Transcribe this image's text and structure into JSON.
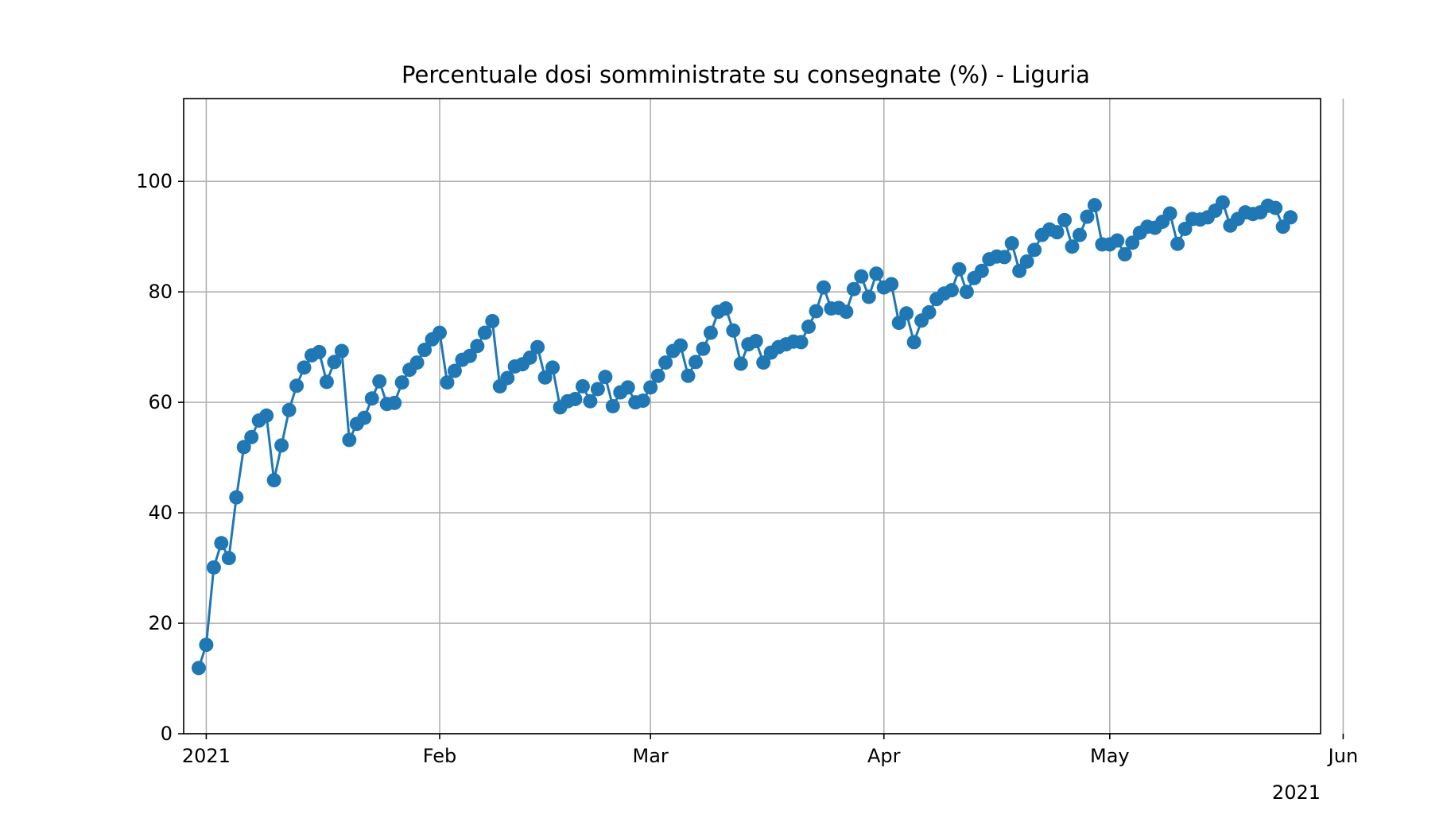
{
  "chart_data": {
    "type": "line",
    "title": "Percentuale dosi somministrate su consegnate (%) - Liguria",
    "xlabel": "",
    "ylabel": "",
    "x_start": "2020-12-31",
    "xlim": [
      "2020-12-29",
      "2021-05-29"
    ],
    "ylim": [
      0,
      115
    ],
    "yticks": [
      0,
      20,
      40,
      60,
      80,
      100
    ],
    "xticks": [
      {
        "date": "2021-01-01",
        "label": "2021"
      },
      {
        "date": "2021-02-01",
        "label": "Feb"
      },
      {
        "date": "2021-03-01",
        "label": "Mar"
      },
      {
        "date": "2021-04-01",
        "label": "Apr"
      },
      {
        "date": "2021-05-01",
        "label": "May"
      },
      {
        "date": "2021-06-01",
        "label": "Jun"
      }
    ],
    "x_offset_label": "2021",
    "grid": true,
    "line_color": "#1f77b4",
    "marker": "circle",
    "series": [
      {
        "values": [
          11.9,
          16.1,
          30.1,
          34.5,
          31.8,
          42.8,
          51.9,
          53.7,
          56.7,
          57.6,
          45.9,
          52.2,
          58.6,
          63.0,
          66.3,
          68.5,
          69.1,
          63.7,
          67.3,
          69.3,
          53.2,
          56.1,
          57.2,
          60.7,
          63.8,
          59.7,
          59.9,
          63.6,
          65.9,
          67.2,
          69.5,
          71.4,
          72.6,
          63.6,
          65.7,
          67.7,
          68.4,
          70.2,
          72.6,
          74.7,
          62.9,
          64.4,
          66.5,
          66.9,
          68.1,
          70.0,
          64.5,
          66.3,
          59.1,
          60.2,
          60.6,
          62.9,
          60.2,
          62.4,
          64.6,
          59.3,
          61.8,
          62.7,
          60.0,
          60.3,
          62.7,
          64.8,
          67.2,
          69.3,
          70.3,
          64.8,
          67.3,
          69.7,
          72.6,
          76.4,
          77.0,
          73.0,
          67.0,
          70.5,
          71.1,
          67.2,
          69.0,
          70.0,
          70.5,
          71.0,
          70.9,
          73.7,
          76.5,
          80.8,
          77.0,
          77.1,
          76.4,
          80.5,
          82.8,
          79.1,
          83.3,
          80.8,
          81.4,
          74.4,
          76.1,
          70.9,
          74.8,
          76.3,
          78.7,
          79.7,
          80.3,
          84.1,
          80.0,
          82.5,
          83.8,
          85.9,
          86.4,
          86.3,
          88.8,
          83.8,
          85.5,
          87.6,
          90.3,
          91.3,
          90.8,
          93.0,
          88.2,
          90.3,
          93.6,
          95.7,
          88.6,
          88.6,
          89.3,
          86.8,
          88.9,
          90.7,
          91.8,
          91.6,
          92.7,
          94.2,
          88.7,
          91.4,
          93.2,
          93.1,
          93.5,
          94.7,
          96.2,
          92.0,
          93.2,
          94.4,
          94.1,
          94.4,
          95.6,
          95.2,
          91.8,
          93.5
        ]
      }
    ]
  }
}
